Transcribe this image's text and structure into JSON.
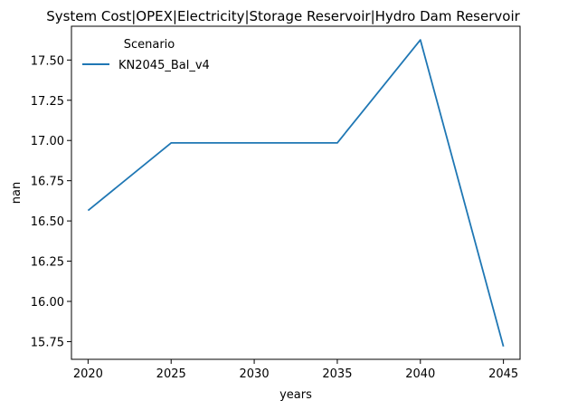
{
  "chart_data": {
    "type": "line",
    "title": "System Cost|OPEX|Electricity|Storage Reservoir|Hydro Dam Reservoir",
    "xlabel": "years",
    "ylabel": "nan",
    "x": [
      2020,
      2025,
      2030,
      2035,
      2040,
      2045
    ],
    "x_ticks": [
      "2020",
      "2025",
      "2030",
      "2035",
      "2040",
      "2045"
    ],
    "y_ticks": [
      "15.75",
      "16.00",
      "16.25",
      "16.50",
      "16.75",
      "17.00",
      "17.25",
      "17.50"
    ],
    "xlim": [
      2019.0,
      2046.0
    ],
    "ylim": [
      15.64,
      17.71
    ],
    "grid": false,
    "legend": {
      "title": "Scenario",
      "placement": "top-left"
    },
    "series": [
      {
        "name": "KN2045_Bal_v4",
        "color": "#1f77b4",
        "values": [
          16.565,
          16.985,
          16.985,
          16.985,
          17.625,
          15.72
        ]
      }
    ]
  }
}
